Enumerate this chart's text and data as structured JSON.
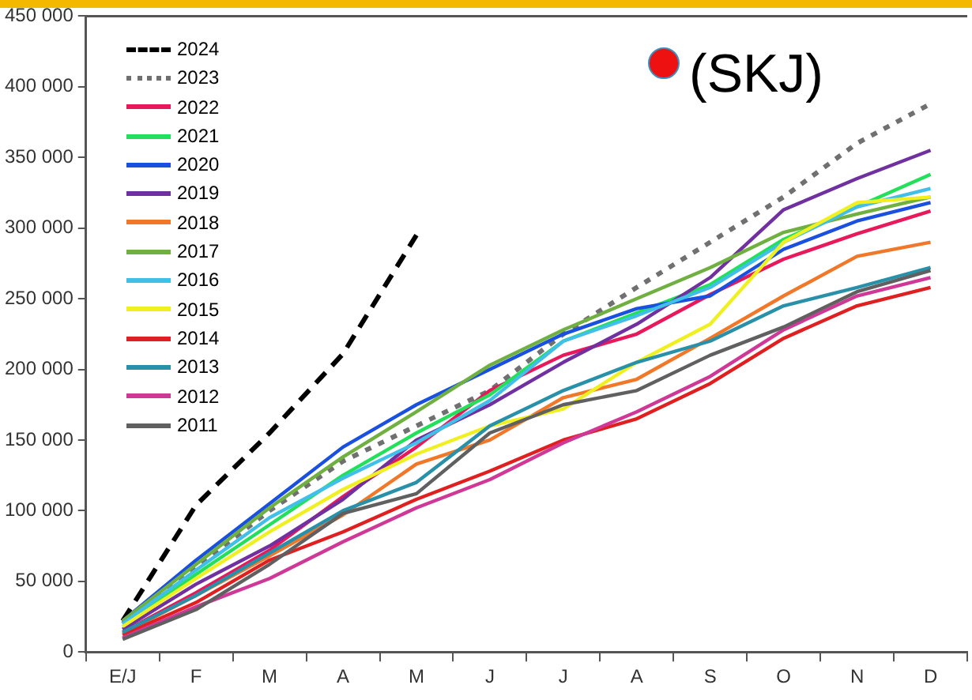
{
  "chart_data": {
    "type": "line",
    "categories": [
      "E/J",
      "F",
      "M",
      "A",
      "M",
      "J",
      "J",
      "A",
      "S",
      "O",
      "N",
      "D"
    ],
    "ylim": [
      0,
      450000
    ],
    "yticks": [
      {
        "value": 0,
        "label": "0"
      },
      {
        "value": 50000,
        "label": "50 000"
      },
      {
        "value": 100000,
        "label": "100 000"
      },
      {
        "value": 150000,
        "label": "150 000"
      },
      {
        "value": 200000,
        "label": "200 000"
      },
      {
        "value": 250000,
        "label": "250 000"
      },
      {
        "value": 300000,
        "label": "300 000"
      },
      {
        "value": 350000,
        "label": "350 000"
      },
      {
        "value": 400000,
        "label": "400 000"
      },
      {
        "value": 450000,
        "label": "450 000"
      }
    ],
    "grid": false,
    "legend": "top left",
    "marker": "none",
    "annotations": [
      "(SKJ)"
    ],
    "series": [
      {
        "name": "2024",
        "color": "#000000",
        "line_style": "dashed",
        "values": [
          22000,
          104000,
          155000,
          211000,
          295000,
          null,
          null,
          null,
          null,
          null,
          null,
          null
        ]
      },
      {
        "name": "2023",
        "color": "#707070",
        "line_style": "dotted",
        "values": [
          20000,
          60000,
          100000,
          135000,
          160000,
          185000,
          225000,
          258000,
          290000,
          322000,
          360000,
          388000
        ]
      },
      {
        "name": "2022",
        "color": "#e8185a",
        "values": [
          14000,
          42000,
          72000,
          110000,
          145000,
          185000,
          210000,
          225000,
          253000,
          278000,
          296000,
          312000
        ]
      },
      {
        "name": "2021",
        "color": "#22e05a",
        "values": [
          18000,
          55000,
          90000,
          125000,
          155000,
          182000,
          220000,
          240000,
          260000,
          292000,
          315000,
          338000
        ]
      },
      {
        "name": "2020",
        "color": "#1a50e0",
        "values": [
          22000,
          65000,
          105000,
          145000,
          175000,
          200000,
          225000,
          243000,
          252000,
          285000,
          305000,
          318000
        ]
      },
      {
        "name": "2019",
        "color": "#7030a0",
        "values": [
          16000,
          48000,
          75000,
          108000,
          150000,
          175000,
          205000,
          232000,
          265000,
          313000,
          335000,
          355000
        ]
      },
      {
        "name": "2018",
        "color": "#f07828",
        "values": [
          13000,
          40000,
          68000,
          97000,
          133000,
          150000,
          180000,
          193000,
          222000,
          252000,
          280000,
          290000
        ]
      },
      {
        "name": "2017",
        "color": "#70b040",
        "values": [
          22000,
          62000,
          102000,
          138000,
          170000,
          203000,
          228000,
          250000,
          272000,
          297000,
          310000,
          322000
        ]
      },
      {
        "name": "2016",
        "color": "#40c0e8",
        "values": [
          20000,
          58000,
          95000,
          123000,
          148000,
          178000,
          220000,
          238000,
          258000,
          290000,
          315000,
          328000
        ]
      },
      {
        "name": "2015",
        "color": "#f0f020",
        "values": [
          18000,
          52000,
          85000,
          115000,
          140000,
          160000,
          172000,
          205000,
          232000,
          290000,
          318000,
          322000
        ]
      },
      {
        "name": "2014",
        "color": "#e02020",
        "values": [
          12000,
          35000,
          65000,
          85000,
          108000,
          128000,
          150000,
          165000,
          190000,
          222000,
          245000,
          258000
        ]
      },
      {
        "name": "2013",
        "color": "#2890a8",
        "values": [
          14000,
          40000,
          70000,
          100000,
          120000,
          160000,
          185000,
          205000,
          220000,
          245000,
          258000,
          272000
        ]
      },
      {
        "name": "2012",
        "color": "#d03898",
        "values": [
          10000,
          32000,
          52000,
          78000,
          102000,
          122000,
          148000,
          170000,
          195000,
          228000,
          252000,
          265000
        ]
      },
      {
        "name": "2011",
        "color": "#606060",
        "values": [
          9000,
          30000,
          62000,
          98000,
          112000,
          155000,
          175000,
          185000,
          210000,
          230000,
          255000,
          270000
        ]
      }
    ]
  }
}
